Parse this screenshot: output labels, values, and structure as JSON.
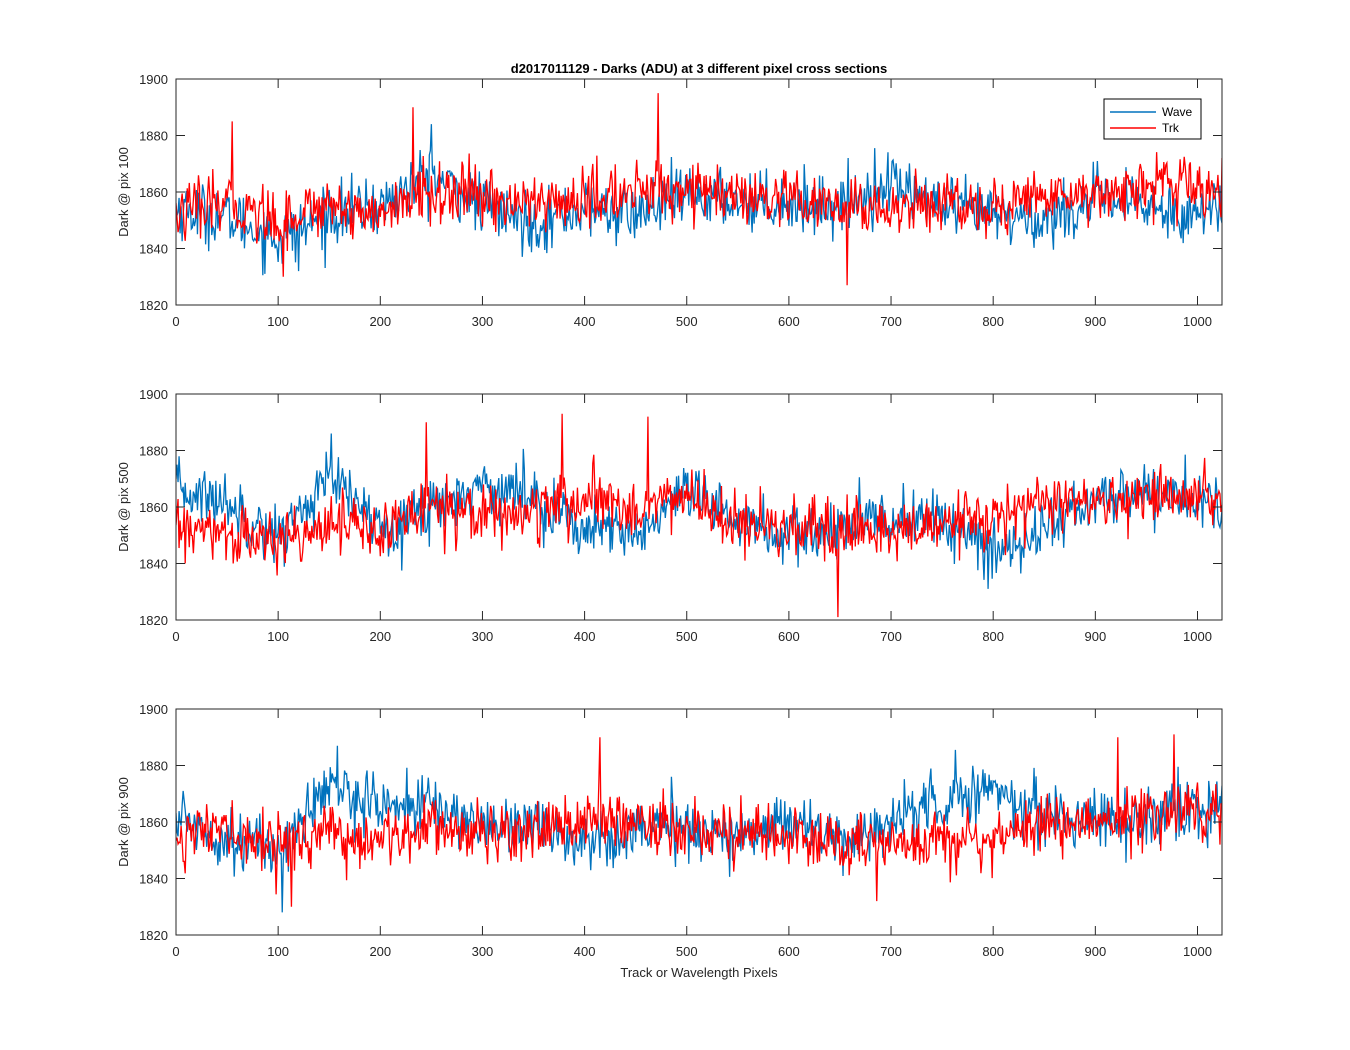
{
  "figure": {
    "title": "d2017011129 - Darks (ADU) at 3 different pixel cross sections",
    "xlabel": "Track or Wavelength Pixels"
  },
  "colors": {
    "wave": "#0072BD",
    "trk": "#FF0000",
    "axis": "#262626"
  },
  "chart_data": [
    {
      "type": "line",
      "ylabel": "Dark @ pix 100",
      "xlim": [
        0,
        1024
      ],
      "ylim": [
        1820,
        1900
      ],
      "xticks": [
        0,
        100,
        200,
        300,
        400,
        500,
        600,
        700,
        800,
        900,
        1000
      ],
      "yticks": [
        1820,
        1840,
        1860,
        1880,
        1900
      ],
      "grid": false,
      "legend": "top-right",
      "x": [
        0,
        50,
        100,
        150,
        200,
        250,
        300,
        350,
        400,
        450,
        500,
        550,
        600,
        650,
        700,
        750,
        800,
        850,
        900,
        950,
        1000,
        1024
      ],
      "series": [
        {
          "name": "Wave",
          "values": [
            1854,
            1851,
            1843,
            1852,
            1855,
            1866,
            1855,
            1849,
            1854,
            1852,
            1859,
            1857,
            1856,
            1855,
            1864,
            1854,
            1852,
            1850,
            1857,
            1855,
            1852,
            1855
          ]
        },
        {
          "name": "Trk",
          "values": [
            1852,
            1856,
            1850,
            1856,
            1852,
            1860,
            1858,
            1856,
            1857,
            1860,
            1862,
            1857,
            1856,
            1854,
            1854,
            1857,
            1854,
            1859,
            1860,
            1862,
            1862,
            1858
          ]
        }
      ],
      "spikes": {
        "Trk": [
          [
            55,
            1885
          ],
          [
            105,
            1830
          ],
          [
            232,
            1890
          ],
          [
            472,
            1895
          ],
          [
            657,
            1827
          ]
        ],
        "Wave": [
          [
            250,
            1884
          ],
          [
            120,
            1832
          ]
        ]
      }
    },
    {
      "type": "line",
      "ylabel": "Dark @ pix 500",
      "xlim": [
        0,
        1024
      ],
      "ylim": [
        1820,
        1900
      ],
      "xticks": [
        0,
        100,
        200,
        300,
        400,
        500,
        600,
        700,
        800,
        900,
        1000
      ],
      "yticks": [
        1820,
        1840,
        1860,
        1880,
        1900
      ],
      "grid": false,
      "legend": "",
      "x": [
        0,
        50,
        100,
        150,
        200,
        250,
        300,
        350,
        400,
        450,
        500,
        550,
        600,
        650,
        700,
        750,
        800,
        850,
        900,
        950,
        1000,
        1024
      ],
      "series": [
        {
          "name": "Wave",
          "values": [
            1866,
            1862,
            1849,
            1870,
            1853,
            1860,
            1868,
            1864,
            1852,
            1850,
            1864,
            1856,
            1849,
            1852,
            1856,
            1856,
            1843,
            1853,
            1862,
            1866,
            1862,
            1860
          ]
        },
        {
          "name": "Trk",
          "values": [
            1852,
            1850,
            1847,
            1856,
            1850,
            1862,
            1858,
            1858,
            1862,
            1860,
            1864,
            1853,
            1852,
            1850,
            1852,
            1853,
            1856,
            1862,
            1860,
            1864,
            1862,
            1862
          ]
        }
      ],
      "spikes": {
        "Trk": [
          [
            245,
            1890
          ],
          [
            378,
            1893
          ],
          [
            462,
            1892
          ],
          [
            648,
            1821
          ]
        ],
        "Wave": [
          [
            152,
            1886
          ],
          [
            795,
            1831
          ]
        ]
      }
    },
    {
      "type": "line",
      "ylabel": "Dark @ pix 900",
      "xlim": [
        0,
        1024
      ],
      "ylim": [
        1820,
        1900
      ],
      "xticks": [
        0,
        100,
        200,
        300,
        400,
        500,
        600,
        700,
        800,
        900,
        1000
      ],
      "yticks": [
        1820,
        1840,
        1860,
        1880,
        1900
      ],
      "grid": false,
      "legend": "",
      "x": [
        0,
        50,
        100,
        150,
        200,
        250,
        300,
        350,
        400,
        450,
        500,
        550,
        600,
        650,
        700,
        750,
        800,
        850,
        900,
        950,
        1000,
        1024
      ],
      "series": [
        {
          "name": "Wave",
          "values": [
            1862,
            1854,
            1850,
            1873,
            1866,
            1866,
            1858,
            1860,
            1852,
            1858,
            1858,
            1854,
            1862,
            1852,
            1860,
            1868,
            1872,
            1862,
            1862,
            1860,
            1864,
            1864
          ]
        },
        {
          "name": "Trk",
          "values": [
            1856,
            1856,
            1852,
            1856,
            1852,
            1860,
            1856,
            1858,
            1860,
            1860,
            1858,
            1856,
            1855,
            1852,
            1851,
            1856,
            1854,
            1860,
            1860,
            1862,
            1866,
            1865
          ]
        }
      ],
      "spikes": {
        "Trk": [
          [
            415,
            1890
          ],
          [
            922,
            1890
          ],
          [
            977,
            1891
          ],
          [
            686,
            1832
          ],
          [
            113,
            1830
          ]
        ],
        "Wave": [
          [
            104,
            1828
          ],
          [
            158,
            1887
          ]
        ]
      }
    }
  ]
}
